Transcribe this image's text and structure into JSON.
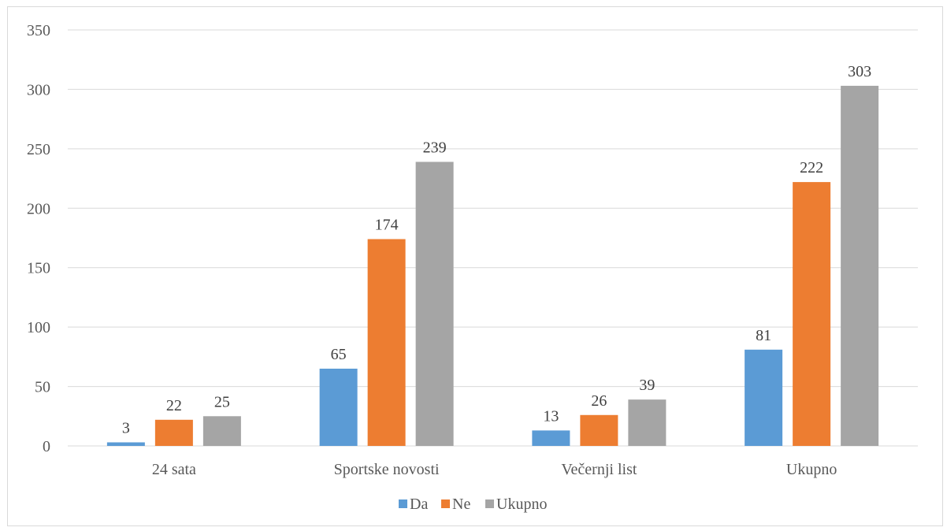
{
  "chart_data": {
    "type": "bar",
    "categories": [
      "24 sata",
      "Sportske novosti",
      "Večernji list",
      "Ukupno"
    ],
    "series": [
      {
        "name": "Da",
        "values": [
          3,
          65,
          13,
          81
        ],
        "color": "#5B9BD5"
      },
      {
        "name": "Ne",
        "values": [
          22,
          174,
          26,
          222
        ],
        "color": "#ED7D31"
      },
      {
        "name": "Ukupno",
        "values": [
          25,
          239,
          39,
          303
        ],
        "color": "#A5A5A5"
      }
    ],
    "y_ticks": [
      "0",
      "50",
      "100",
      "150",
      "200",
      "250",
      "300",
      "350"
    ],
    "ylim": [
      0,
      350
    ],
    "grid": true,
    "legend_position": "bottom",
    "data_labels": true,
    "title": "",
    "xlabel": "",
    "ylabel": ""
  }
}
